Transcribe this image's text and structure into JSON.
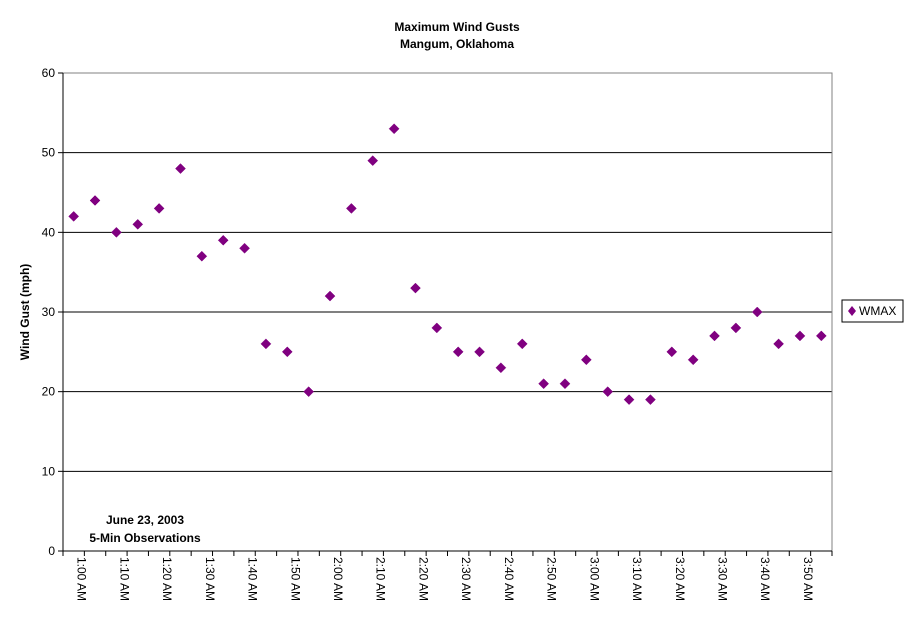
{
  "chart_data": {
    "type": "scatter",
    "title": "Maximum Wind Gusts",
    "subtitle": "Mangum, Oklahoma",
    "xlabel": "",
    "ylabel": "Wind Gust (mph)",
    "ylim": [
      0,
      60
    ],
    "yticks": [
      0,
      10,
      20,
      30,
      40,
      50,
      60
    ],
    "grid": true,
    "legend_position": "right",
    "annotation": [
      "June 23, 2003",
      "5-Min Observations"
    ],
    "x_tick_labels": [
      "1:00 AM",
      "1:10 AM",
      "1:20 AM",
      "1:30 AM",
      "1:40 AM",
      "1:50 AM",
      "2:00 AM",
      "2:10 AM",
      "2:20 AM",
      "2:30 AM",
      "2:40 AM",
      "2:50 AM",
      "3:00 AM",
      "3:10 AM",
      "3:20 AM",
      "3:30 AM",
      "3:40 AM",
      "3:50 AM"
    ],
    "x": [
      "1:00 AM",
      "1:05 AM",
      "1:10 AM",
      "1:15 AM",
      "1:20 AM",
      "1:25 AM",
      "1:30 AM",
      "1:35 AM",
      "1:40 AM",
      "1:45 AM",
      "1:50 AM",
      "1:55 AM",
      "2:00 AM",
      "2:05 AM",
      "2:10 AM",
      "2:15 AM",
      "2:20 AM",
      "2:25 AM",
      "2:30 AM",
      "2:35 AM",
      "2:40 AM",
      "2:45 AM",
      "2:50 AM",
      "2:55 AM",
      "3:00 AM",
      "3:05 AM",
      "3:10 AM",
      "3:15 AM",
      "3:20 AM",
      "3:25 AM",
      "3:30 AM",
      "3:35 AM",
      "3:40 AM",
      "3:45 AM",
      "3:50 AM",
      "3:55 AM"
    ],
    "series": [
      {
        "name": "WMAX",
        "color": "#800080",
        "values": [
          42,
          44,
          40,
          41,
          43,
          48,
          37,
          39,
          38,
          26,
          25,
          20,
          32,
          43,
          49,
          53,
          33,
          28,
          25,
          25,
          23,
          26,
          21,
          21,
          24,
          20,
          19,
          19,
          25,
          24,
          27,
          28,
          30,
          26,
          27,
          27
        ]
      }
    ]
  }
}
